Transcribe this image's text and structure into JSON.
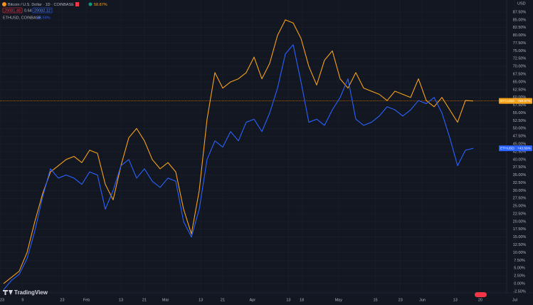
{
  "header": {
    "title": "Bitcoin / U.S. Dollar · 1D · COINBASE",
    "change": "58.87%",
    "bid": "29081.48",
    "spread": "0.64",
    "ask": "29082.12",
    "compare": "ETHUSD, COINBASE",
    "compare_change": "43.59%",
    "brand": "TradingView",
    "currency": "USD"
  },
  "chart_data": {
    "type": "line",
    "xlim": [
      -0.45,
      64.27
    ],
    "xticks": [
      {
        "value": -0.3,
        "label": "23"
      },
      {
        "value": 2.45,
        "label": "9"
      },
      {
        "value": 7.5,
        "label": "23"
      },
      {
        "value": 10.6,
        "label": "Feb"
      },
      {
        "value": 15,
        "label": "13"
      },
      {
        "value": 18,
        "label": "21"
      },
      {
        "value": 20.7,
        "label": "Mar"
      },
      {
        "value": 25.2,
        "label": "13"
      },
      {
        "value": 28,
        "label": "21"
      },
      {
        "value": 31.8,
        "label": "Apr"
      },
      {
        "value": 36.4,
        "label": "13"
      },
      {
        "value": 38.1,
        "label": "18"
      },
      {
        "value": 42.8,
        "label": "May"
      },
      {
        "value": 47.5,
        "label": "15"
      },
      {
        "value": 50.7,
        "label": "23"
      },
      {
        "value": 53.5,
        "label": "Jun"
      },
      {
        "value": 57.7,
        "label": "13"
      },
      {
        "value": 60.9,
        "label": "20"
      },
      {
        "value": 65.3,
        "label": "Jul"
      }
    ],
    "ylim": [
      -2.76,
      91.4
    ],
    "yticks": [
      {
        "value": 87.5,
        "label": "87.50%"
      },
      {
        "value": 85,
        "label": "85.00%"
      },
      {
        "value": 82.5,
        "label": "82.50%"
      },
      {
        "value": 80,
        "label": "80.00%"
      },
      {
        "value": 77.5,
        "label": "77.50%"
      },
      {
        "value": 75,
        "label": "75.00%"
      },
      {
        "value": 72.5,
        "label": "72.50%"
      },
      {
        "value": 70,
        "label": "70.00%"
      },
      {
        "value": 67.5,
        "label": "67.50%"
      },
      {
        "value": 65,
        "label": "65.00%"
      },
      {
        "value": 62.5,
        "label": "62.50%"
      },
      {
        "value": 60,
        "label": "60.00%"
      },
      {
        "value": 57.5,
        "label": "57.50%"
      },
      {
        "value": 55,
        "label": "55.00%"
      },
      {
        "value": 52.5,
        "label": "52.50%"
      },
      {
        "value": 50,
        "label": "50.00%"
      },
      {
        "value": 47.5,
        "label": "47.50%"
      },
      {
        "value": 45,
        "label": "45.00%"
      },
      {
        "value": 42.5,
        "label": "42.50%"
      },
      {
        "value": 40,
        "label": "40.00%"
      },
      {
        "value": 37.5,
        "label": "37.50%"
      },
      {
        "value": 35,
        "label": "35.00%"
      },
      {
        "value": 32.5,
        "label": "32.50%"
      },
      {
        "value": 30,
        "label": "30.00%"
      },
      {
        "value": 27.5,
        "label": "27.50%"
      },
      {
        "value": 25,
        "label": "25.00%"
      },
      {
        "value": 22.5,
        "label": "22.50%"
      },
      {
        "value": 20,
        "label": "20.00%"
      },
      {
        "value": 17.5,
        "label": "17.50%"
      },
      {
        "value": 15,
        "label": "15.00%"
      },
      {
        "value": 12.5,
        "label": "12.50%"
      },
      {
        "value": 10,
        "label": "10.00%"
      },
      {
        "value": 7.5,
        "label": "7.50%"
      },
      {
        "value": 5,
        "label": "5.00%"
      },
      {
        "value": 2.5,
        "label": "2.50%"
      },
      {
        "value": 0,
        "label": "0.00%"
      },
      {
        "value": -2.5,
        "label": "-2.50%"
      }
    ],
    "grid": true,
    "x": [
      0,
      1,
      2,
      3,
      4,
      5,
      6,
      7,
      8,
      9,
      10,
      11,
      12,
      13,
      14,
      15,
      16,
      17,
      18,
      19,
      20,
      21,
      22,
      23,
      24,
      25,
      26,
      27,
      28,
      29,
      30,
      31,
      32,
      33,
      34,
      35,
      36,
      37,
      38,
      39,
      40,
      41,
      42,
      43,
      44,
      45,
      46,
      47,
      48,
      49,
      50,
      51,
      52,
      53,
      54,
      55,
      56,
      57,
      58,
      59,
      60
    ],
    "series": [
      {
        "name": "BTCUSD",
        "color": "#f7a21b",
        "last_label": "+58.87%",
        "values": [
          0,
          2,
          4,
          10,
          20,
          29,
          36,
          38,
          40,
          41,
          39,
          43,
          42,
          32,
          27,
          38,
          47,
          50,
          46,
          40,
          37,
          39,
          36,
          24,
          16,
          30,
          53,
          68,
          63,
          65,
          66,
          68,
          73,
          66,
          71,
          80,
          85,
          84,
          79,
          70,
          64,
          72,
          75,
          66,
          63,
          68,
          63,
          62,
          61,
          59,
          62,
          61,
          60,
          66,
          59,
          57,
          60,
          56,
          52,
          59,
          58.87
        ]
      },
      {
        "name": "ETHUSD",
        "color": "#2962ff",
        "last_label": "+43.59%",
        "values": [
          -2,
          1,
          3,
          8,
          17,
          28,
          37,
          34,
          35,
          34,
          32,
          36,
          35,
          24,
          30,
          38,
          40,
          34,
          37,
          33,
          31,
          34,
          33,
          20,
          15,
          24,
          40,
          46,
          44,
          49,
          46,
          52,
          53,
          49,
          55,
          63,
          74,
          77,
          65,
          52,
          53,
          51,
          56,
          60,
          66,
          53,
          51,
          52,
          54,
          57,
          56,
          54,
          56,
          59,
          58,
          60,
          55,
          47,
          38,
          43,
          43.59
        ]
      }
    ]
  }
}
